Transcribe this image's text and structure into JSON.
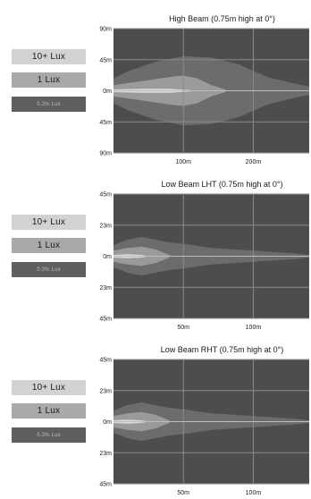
{
  "chart_data": [
    {
      "type": "area",
      "title": "High Beam (0.75m high at 0°)",
      "legend": [
        "10+ Lux",
        "1 Lux",
        "0.3% Lux"
      ],
      "colors": [
        "#dcdcdc",
        "#9d9d9d",
        "#6e6e6e",
        "#4d4d4d"
      ],
      "y_ticks": [
        "90m",
        "45m",
        "0m",
        "45m",
        "90m"
      ],
      "y_range": [
        -90,
        90
      ],
      "x_ticks": [
        "100m",
        "200m"
      ],
      "x_range": [
        0,
        280
      ],
      "grid": true,
      "contours": [
        {
          "level": "0.3% Lux",
          "x": [
            0,
            20,
            60,
            100,
            140,
            180,
            220,
            260,
            280
          ],
          "half_width": [
            18,
            28,
            42,
            50,
            48,
            38,
            20,
            10,
            6
          ]
        },
        {
          "level": "1 Lux",
          "x": [
            0,
            40,
            80,
            100,
            120,
            140,
            160
          ],
          "half_width": [
            8,
            14,
            20,
            22,
            18,
            8,
            2
          ]
        },
        {
          "level": "10+ Lux",
          "x": [
            0,
            40,
            80,
            110,
            120
          ],
          "half_width": [
            2,
            3,
            3,
            1,
            0
          ]
        }
      ]
    },
    {
      "type": "area",
      "title": "Low Beam LHT (0.75m high at 0°)",
      "legend": [
        "10+ Lux",
        "1 Lux",
        "0.3% Lux"
      ],
      "colors": [
        "#dcdcdc",
        "#9d9d9d",
        "#6e6e6e",
        "#4d4d4d"
      ],
      "y_ticks": [
        "45m",
        "23m",
        "0m",
        "23m",
        "45m"
      ],
      "y_range": [
        -45,
        45
      ],
      "x_ticks": [
        "50m",
        "100m"
      ],
      "x_range": [
        0,
        140
      ],
      "grid": true,
      "contours": [
        {
          "level": "0.3% Lux",
          "x": [
            0,
            10,
            20,
            30,
            40,
            50,
            70,
            100,
            130,
            140
          ],
          "half_width": [
            8,
            12,
            14,
            12,
            10,
            9,
            6,
            4,
            2,
            1
          ]
        },
        {
          "level": "1 Lux",
          "x": [
            0,
            10,
            20,
            30,
            40
          ],
          "half_width": [
            4,
            6,
            7,
            5,
            1
          ]
        },
        {
          "level": "10+ Lux",
          "x": [
            0,
            10,
            20,
            25
          ],
          "half_width": [
            1,
            1.5,
            1,
            0
          ]
        }
      ]
    },
    {
      "type": "area",
      "title": "Low Beam RHT (0.75m high at 0°)",
      "legend": [
        "10+ Lux",
        "1 Lux",
        "0.3% Lux"
      ],
      "colors": [
        "#dcdcdc",
        "#9d9d9d",
        "#6e6e6e",
        "#4d4d4d"
      ],
      "y_ticks": [
        "45m",
        "23m",
        "0m",
        "23m",
        "45m"
      ],
      "y_range": [
        -45,
        45
      ],
      "x_ticks": [
        "50m",
        "100m"
      ],
      "x_range": [
        0,
        140
      ],
      "grid": true,
      "contours": [
        {
          "level": "0.3% Lux",
          "x": [
            0,
            10,
            20,
            30,
            40,
            50,
            70,
            100,
            130,
            140
          ],
          "half_width": [
            8,
            12,
            14,
            12,
            10,
            9,
            6,
            4,
            2,
            1
          ]
        },
        {
          "level": "1 Lux",
          "x": [
            0,
            10,
            20,
            30,
            40
          ],
          "half_width": [
            4,
            6,
            7,
            5,
            1
          ]
        },
        {
          "level": "10+ Lux",
          "x": [
            0,
            10,
            20,
            25
          ],
          "half_width": [
            1,
            1.5,
            1,
            0
          ]
        }
      ]
    }
  ]
}
